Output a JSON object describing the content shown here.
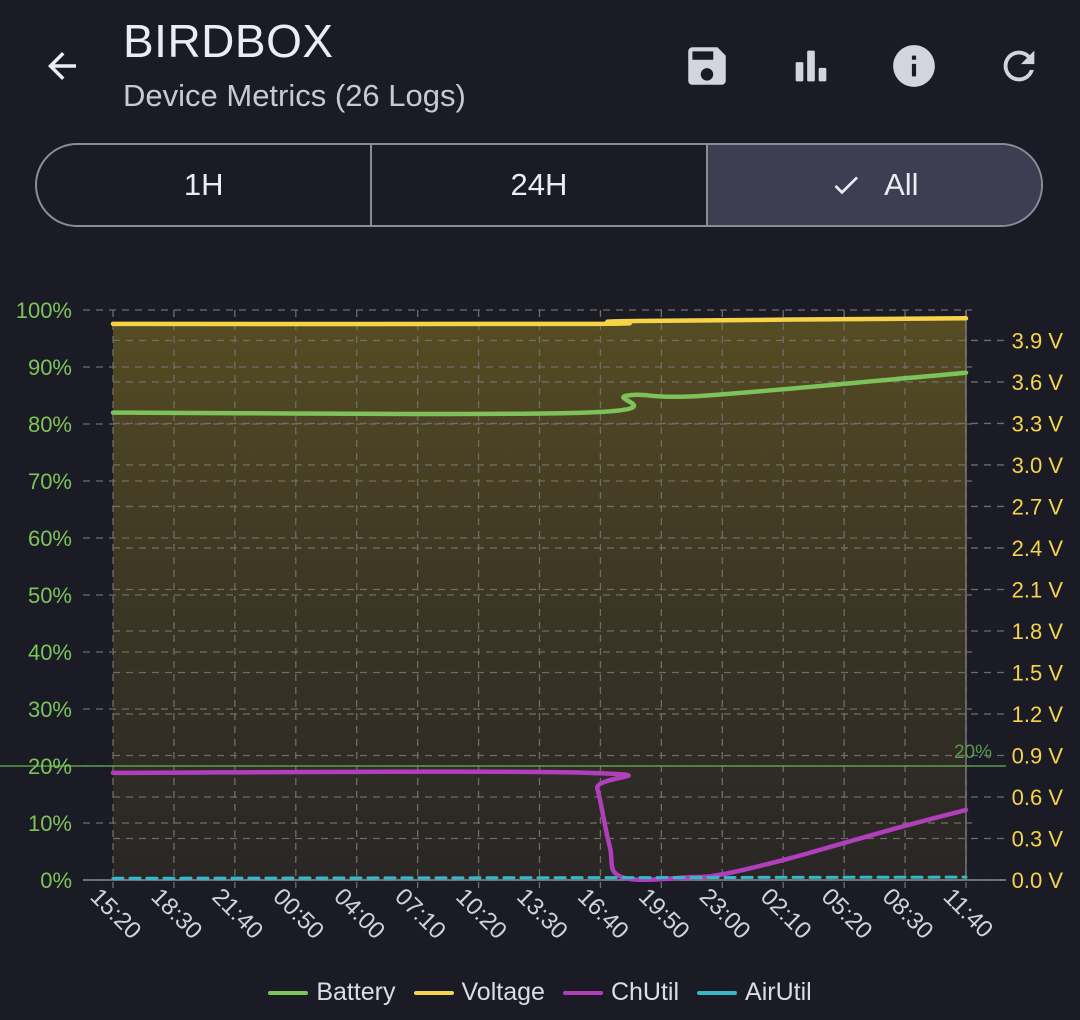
{
  "header": {
    "title": "BIRDBOX",
    "subtitle": "Device Metrics (26 Logs)",
    "actions": [
      "back-arrow-icon",
      "save-icon",
      "bar-chart-icon",
      "info-icon",
      "refresh-icon"
    ]
  },
  "range_selector": {
    "options": [
      "1H",
      "24H",
      "All"
    ],
    "selected": "All"
  },
  "colors": {
    "background": "#1b1b26",
    "battery": "#7dc35a",
    "voltage": "#f5d44a",
    "chutil": "#b13fbb",
    "airutil": "#33b8cc",
    "left_axis_text": "#7dc35a",
    "right_axis_text": "#f5d44a"
  },
  "chart_data": {
    "type": "line",
    "x_tick_labels": [
      "15:20",
      "18:30",
      "21:40",
      "00:50",
      "04:00",
      "07:10",
      "10:20",
      "13:30",
      "16:40",
      "19:50",
      "23:00",
      "02:10",
      "05:20",
      "08:30",
      "11:40"
    ],
    "left_axis": {
      "ticks": [
        "0%",
        "10%",
        "20%",
        "30%",
        "40%",
        "50%",
        "60%",
        "70%",
        "80%",
        "90%",
        "100%"
      ],
      "range": [
        0,
        100
      ]
    },
    "right_axis": {
      "ticks": [
        "0.0 V",
        "0.3 V",
        "0.6 V",
        "0.9 V",
        "1.2 V",
        "1.5 V",
        "1.8 V",
        "2.1 V",
        "2.4 V",
        "2.7 V",
        "3.0 V",
        "3.3 V",
        "3.6 V",
        "3.9 V"
      ],
      "range": [
        0,
        4.12
      ]
    },
    "reference_line": {
      "value": 20,
      "label": "20%"
    },
    "grid": true,
    "legend_position": "bottom",
    "series": [
      {
        "name": "Battery",
        "axis": "left",
        "x": [
          0,
          7.75,
          8.45,
          9.75,
          14
        ],
        "values": [
          82,
          82,
          85,
          85,
          89
        ]
      },
      {
        "name": "Voltage",
        "axis": "right",
        "filled": true,
        "x": [
          0,
          7.9,
          8.45,
          14
        ],
        "values": [
          4.02,
          4.02,
          4.04,
          4.06
        ]
      },
      {
        "name": "ChUtil",
        "axis": "left",
        "x": [
          0,
          7.8,
          7.95,
          8.15,
          8.35,
          9.5,
          10,
          11,
          12,
          13,
          14
        ],
        "values": [
          18.8,
          18.8,
          16,
          6,
          0.5,
          0.5,
          1,
          3.5,
          6.5,
          9.5,
          12.3
        ]
      },
      {
        "name": "AirUtil",
        "axis": "left",
        "dashed": true,
        "x": [
          0,
          14
        ],
        "values": [
          0.3,
          0.5
        ]
      }
    ]
  }
}
